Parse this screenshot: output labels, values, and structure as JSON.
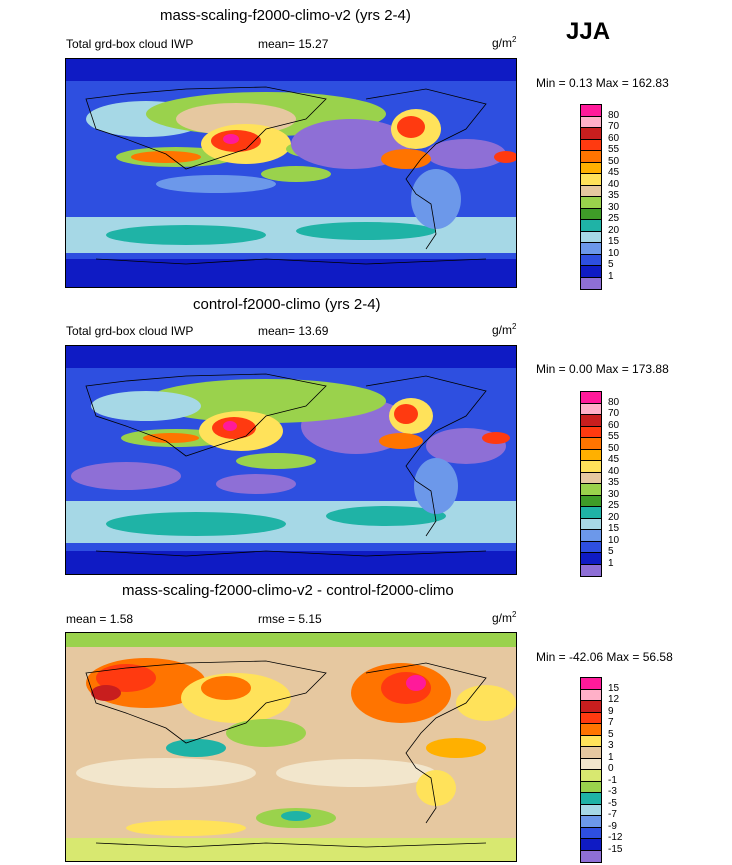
{
  "season": "JJA",
  "palette_levels": [
    "#8e6fd6",
    "#0f1bc4",
    "#2e4fe0",
    "#6c98ea",
    "#a6d8e6",
    "#1fb3a6",
    "#9ad24c",
    "#3f9c28",
    "#e6c8a0",
    "#ffe25a",
    "#ffb000",
    "#ff7400",
    "#ff3a10",
    "#c81e1e",
    "#ffb0c8",
    "#ff1a9a"
  ],
  "panels": [
    {
      "title": "mass-scaling-f2000-climo-v2 (yrs 2-4)",
      "left_label": "Total grd-box cloud IWP",
      "mid_label": "mean=  15.27",
      "unit": "g/m",
      "unit_exp": "2",
      "minmax": "Min =   0.13 Max = 162.83",
      "ticks": [
        "80",
        "70",
        "60",
        "55",
        "50",
        "45",
        "40",
        "35",
        "30",
        "25",
        "20",
        "15",
        "10",
        "5",
        "1"
      ],
      "colors": [
        "#ff1a9a",
        "#ffb0c8",
        "#c81e1e",
        "#ff3a10",
        "#ff7400",
        "#ffb000",
        "#ffe25a",
        "#e6c8a0",
        "#9ad24c",
        "#3f9c28",
        "#1fb3a6",
        "#a6d8e6",
        "#6c98ea",
        "#2e4fe0",
        "#0f1bc4",
        "#8e6fd6"
      ]
    },
    {
      "title": "control-f2000-climo (yrs 2-4)",
      "left_label": "Total grd-box cloud IWP",
      "mid_label": "mean=  13.69",
      "unit": "g/m",
      "unit_exp": "2",
      "minmax": "Min =   0.00 Max = 173.88",
      "ticks": [
        "80",
        "70",
        "60",
        "55",
        "50",
        "45",
        "40",
        "35",
        "30",
        "25",
        "20",
        "15",
        "10",
        "5",
        "1"
      ],
      "colors": [
        "#ff1a9a",
        "#ffb0c8",
        "#c81e1e",
        "#ff3a10",
        "#ff7400",
        "#ffb000",
        "#ffe25a",
        "#e6c8a0",
        "#9ad24c",
        "#3f9c28",
        "#1fb3a6",
        "#a6d8e6",
        "#6c98ea",
        "#2e4fe0",
        "#0f1bc4",
        "#8e6fd6"
      ]
    },
    {
      "title": "mass-scaling-f2000-climo-v2 - control-f2000-climo",
      "left_label": "mean =   1.58",
      "mid_label": "rmse =   5.15",
      "unit": "g/m",
      "unit_exp": "2",
      "minmax": "Min = -42.06 Max =  56.58",
      "ticks": [
        "15",
        "12",
        "9",
        "7",
        "5",
        "3",
        "1",
        "0",
        "-1",
        "-3",
        "-5",
        "-7",
        "-9",
        "-12",
        "-15"
      ],
      "colors": [
        "#ff1a9a",
        "#ffb0c8",
        "#c81e1e",
        "#ff3a10",
        "#ff7400",
        "#ffe25a",
        "#e6c8a0",
        "#f2e6cc",
        "#d8e870",
        "#9ad24c",
        "#1fb3a6",
        "#a6d8e6",
        "#6c98ea",
        "#2e4fe0",
        "#0f1bc4",
        "#8e6fd6"
      ]
    }
  ]
}
